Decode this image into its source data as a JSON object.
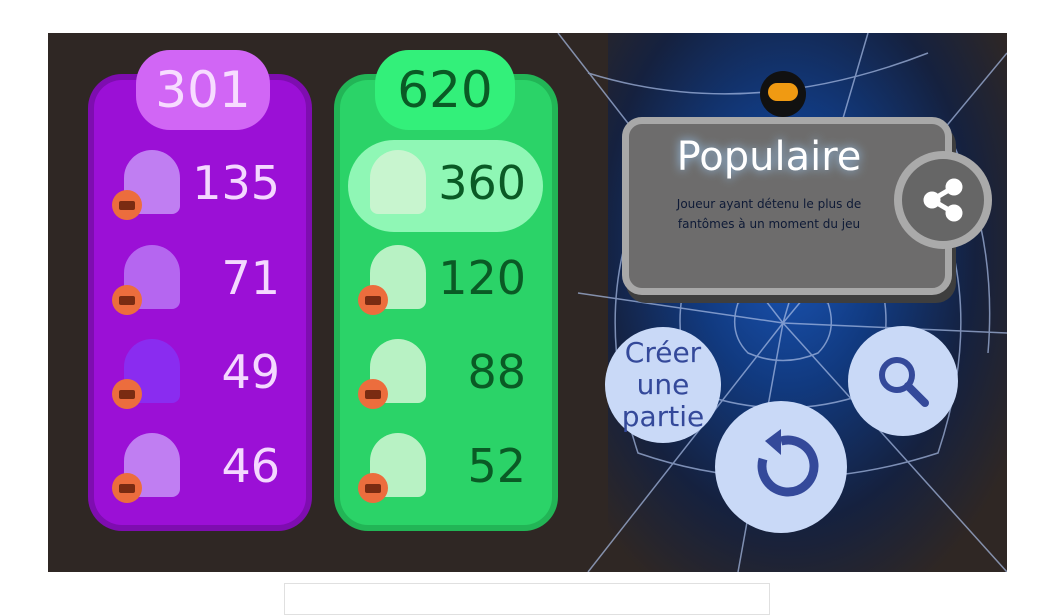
{
  "teams": [
    {
      "color": "#9b10d6",
      "total": "301",
      "players": [
        {
          "score": "135",
          "bot": true
        },
        {
          "score": "71",
          "bot": true
        },
        {
          "score": "49",
          "bot": true
        },
        {
          "score": "46",
          "bot": true
        }
      ]
    },
    {
      "color": "#2bd368",
      "total": "620",
      "players": [
        {
          "score": "360",
          "bot": false,
          "highlighted": true
        },
        {
          "score": "120",
          "bot": true
        },
        {
          "score": "88",
          "bot": true
        },
        {
          "score": "52",
          "bot": true
        }
      ]
    }
  ],
  "award": {
    "title": "Populaire",
    "description": "Joueur ayant détenu le plus de fantômes à un moment du jeu",
    "share_icon": "share-icon"
  },
  "buttons": {
    "create": "Créer une partie",
    "restart_icon": "restart-icon",
    "search_icon": "search-icon"
  }
}
